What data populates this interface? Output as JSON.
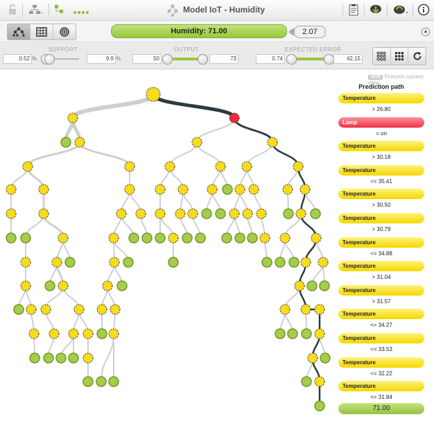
{
  "app": {
    "title": "Model IoT - Humidity"
  },
  "icons": {
    "left": [
      "lock-icon",
      "tree-icon",
      "model-icon"
    ],
    "right": [
      "clipboard-icon",
      "download-icon",
      "refresh-icon",
      "info-icon"
    ]
  },
  "views": [
    "tree-view-icon",
    "table-view-icon",
    "sunburst-view-icon"
  ],
  "prediction": {
    "label": "Humidity: 71.00",
    "confidence": "2.07"
  },
  "filters": {
    "support": {
      "label": "SUPPORT",
      "min": "0.52",
      "max": "9.9",
      "unit": "%"
    },
    "output": {
      "label": "OUTPUT",
      "min": "50",
      "max": "73"
    },
    "expected_error": {
      "label": "EXPECTED ERROR",
      "min": "0.74",
      "max": "42.15"
    }
  },
  "freeze_hint": {
    "key": "shift",
    "text": "Freezes current view"
  },
  "prediction_path": {
    "title": "Prediction path",
    "steps": [
      {
        "field": "Temperature",
        "condition": "> 26.80",
        "color": "yellow"
      },
      {
        "field": "Lamp",
        "condition": "= on",
        "color": "red"
      },
      {
        "field": "Temperature",
        "condition": "> 30.18",
        "color": "yellow"
      },
      {
        "field": "Temperature",
        "condition": "<= 35.41",
        "color": "yellow"
      },
      {
        "field": "Temperature",
        "condition": "> 30.50",
        "color": "yellow"
      },
      {
        "field": "Temperature",
        "condition": "> 30.79",
        "color": "yellow"
      },
      {
        "field": "Temperature",
        "condition": "<= 34.88",
        "color": "yellow"
      },
      {
        "field": "Temperature",
        "condition": "> 31.04",
        "color": "yellow"
      },
      {
        "field": "Temperature",
        "condition": "> 31.57",
        "color": "yellow"
      },
      {
        "field": "Temperature",
        "condition": "<= 34.27",
        "color": "yellow"
      },
      {
        "field": "Temperature",
        "condition": "<= 33.53",
        "color": "yellow"
      },
      {
        "field": "Temperature",
        "condition": "<= 32.22",
        "color": "yellow"
      },
      {
        "field": "Temperature",
        "condition": "<= 31.84",
        "color": "yellow"
      }
    ],
    "result": "71.00"
  },
  "colors": {
    "split_node": "#f7dc1b",
    "split_node_border": "#333333",
    "leaf_node": "#a7cc4d",
    "leaf_node_border": "#6f9a22",
    "highlight_node": "#ee2a3a",
    "path_edge": "#2d3b40",
    "edge": "#cfcfcf",
    "accent": "#98c73b"
  }
}
